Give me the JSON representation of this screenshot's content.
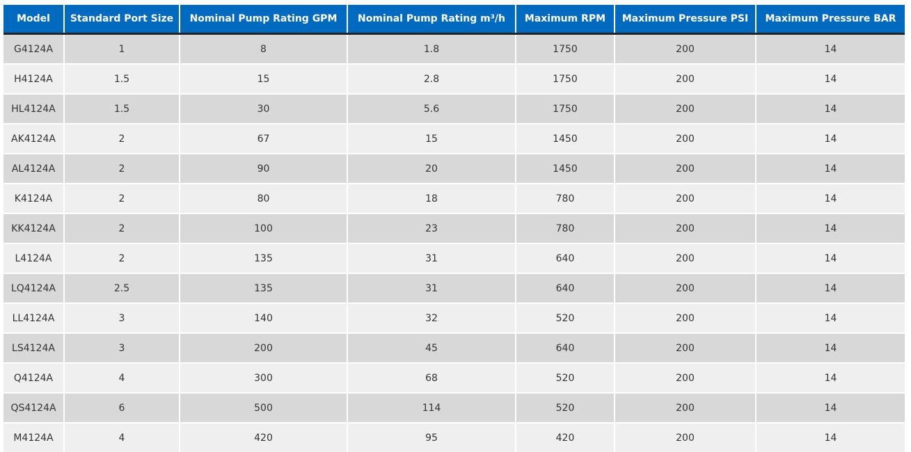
{
  "table": {
    "headers": [
      "Model",
      "Standard Port Size",
      "Nominal Pump Rating GPM",
      "Nominal Pump Rating m³/h",
      "Maximum RPM",
      "Maximum Pressure PSI",
      "Maximum Pressure BAR"
    ],
    "rows": [
      [
        "G4124A",
        "1",
        "8",
        "1.8",
        "1750",
        "200",
        "14"
      ],
      [
        "H4124A",
        "1.5",
        "15",
        "2.8",
        "1750",
        "200",
        "14"
      ],
      [
        "HL4124A",
        "1.5",
        "30",
        "5.6",
        "1750",
        "200",
        "14"
      ],
      [
        "AK4124A",
        "2",
        "67",
        "15",
        "1450",
        "200",
        "14"
      ],
      [
        "AL4124A",
        "2",
        "90",
        "20",
        "1450",
        "200",
        "14"
      ],
      [
        "K4124A",
        "2",
        "80",
        "18",
        "780",
        "200",
        "14"
      ],
      [
        "KK4124A",
        "2",
        "100",
        "23",
        "780",
        "200",
        "14"
      ],
      [
        "L4124A",
        "2",
        "135",
        "31",
        "640",
        "200",
        "14"
      ],
      [
        "LQ4124A",
        "2.5",
        "135",
        "31",
        "640",
        "200",
        "14"
      ],
      [
        "LL4124A",
        "3",
        "140",
        "32",
        "520",
        "200",
        "14"
      ],
      [
        "LS4124A",
        "3",
        "200",
        "45",
        "640",
        "200",
        "14"
      ],
      [
        "Q4124A",
        "4",
        "300",
        "68",
        "520",
        "200",
        "14"
      ],
      [
        "QS4124A",
        "6",
        "500",
        "114",
        "520",
        "200",
        "14"
      ],
      [
        "M4124A",
        "4",
        "420",
        "95",
        "420",
        "200",
        "14"
      ]
    ]
  },
  "colors": {
    "header": "#0069c0",
    "row_odd": "#d8d8d8",
    "row_even": "#efefef"
  }
}
